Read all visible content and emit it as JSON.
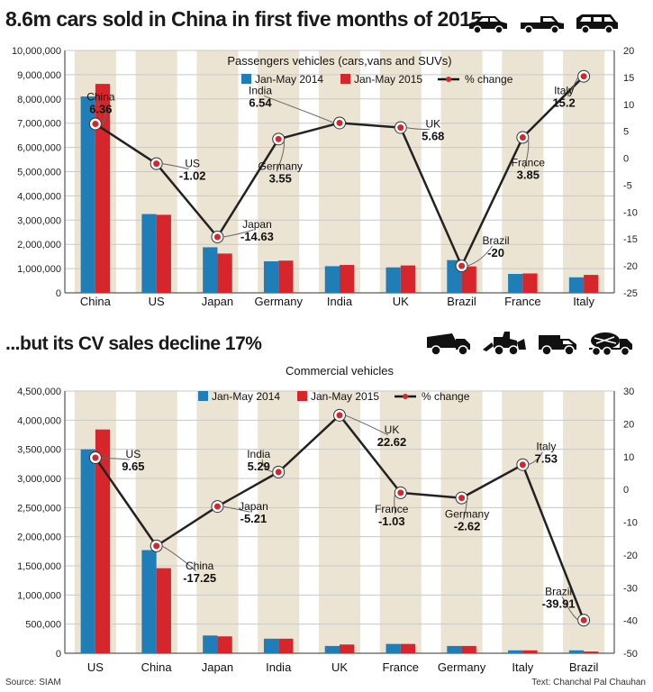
{
  "headline_top": "8.6m cars sold in China in first five months of 2015...",
  "headline_bottom": "...but its CV sales decline 17%",
  "source": "Source: SIAM",
  "credit": "Text: Chanchal Pal Chauhan",
  "colors": {
    "series2014": "#1f7eb8",
    "series2015": "#d7262b",
    "line": "#1a1a1a",
    "band": "#ece4d2",
    "grid": "#c8c8c8"
  },
  "icons_top": [
    "car-icon",
    "pickup-icon",
    "suv-icon"
  ],
  "icons_bottom": [
    "truck-icon",
    "loader-icon",
    "bus-truck-icon",
    "mixer-icon"
  ],
  "chart_data": [
    {
      "type": "bar",
      "title": "Passengers vehicles (cars,vans and SUVs)",
      "categories": [
        "China",
        "US",
        "Japan",
        "Germany",
        "India",
        "UK",
        "Brazil",
        "France",
        "Italy"
      ],
      "series": [
        {
          "name": "Jan-May 2014",
          "values": [
            8100000,
            3250000,
            1880000,
            1300000,
            1100000,
            1050000,
            1350000,
            780000,
            640000
          ]
        },
        {
          "name": "Jan-May 2015",
          "values": [
            8620000,
            3220000,
            1620000,
            1330000,
            1150000,
            1130000,
            1090000,
            800000,
            740000
          ]
        }
      ],
      "line_series": {
        "name": "% change",
        "values": [
          6.36,
          -1.02,
          -14.63,
          3.55,
          6.54,
          5.68,
          -20,
          3.85,
          15.2
        ]
      },
      "annotations": [
        {
          "name": "China",
          "value": "6.36"
        },
        {
          "name": "US",
          "value": "-1.02"
        },
        {
          "name": "Japan",
          "value": "-14.63"
        },
        {
          "name": "Germany",
          "value": "3.55"
        },
        {
          "name": "India",
          "value": "6.54"
        },
        {
          "name": "UK",
          "value": "5.68"
        },
        {
          "name": "Brazil",
          "value": "-20"
        },
        {
          "name": "France",
          "value": "3.85"
        },
        {
          "name": "Italy",
          "value": "15.2"
        }
      ],
      "ylim": [
        0,
        10000000
      ],
      "yticks": [
        "0",
        "1,000,000",
        "2,000,000",
        "3,000,000",
        "4,000,000",
        "5,000,000",
        "6,000,000",
        "7,000,000",
        "8,000,000",
        "9,000,000",
        "10,000,000"
      ],
      "y2lim": [
        -25,
        20
      ],
      "y2ticks": [
        "-25",
        "-20",
        "-15",
        "-10",
        "-5",
        "0",
        "5",
        "10",
        "15",
        "20"
      ]
    },
    {
      "type": "bar",
      "title": "Commercial vehicles",
      "categories": [
        "US",
        "China",
        "Japan",
        "India",
        "UK",
        "France",
        "Germany",
        "Italy",
        "Brazil"
      ],
      "series": [
        {
          "name": "Jan-May 2014",
          "values": [
            3500000,
            1770000,
            305000,
            250000,
            125000,
            160000,
            125000,
            50000,
            50000
          ]
        },
        {
          "name": "Jan-May 2015",
          "values": [
            3840000,
            1460000,
            290000,
            250000,
            150000,
            160000,
            125000,
            50000,
            30000
          ]
        }
      ],
      "line_series": {
        "name": "% change",
        "values": [
          9.65,
          -17.25,
          -5.21,
          5.29,
          22.62,
          -1.03,
          -2.62,
          7.53,
          -39.91
        ]
      },
      "annotations": [
        {
          "name": "US",
          "value": "9.65"
        },
        {
          "name": "China",
          "value": "-17.25"
        },
        {
          "name": "Japan",
          "value": "-5.21"
        },
        {
          "name": "India",
          "value": "5.29"
        },
        {
          "name": "UK",
          "value": "22.62"
        },
        {
          "name": "France",
          "value": "-1.03"
        },
        {
          "name": "Germany",
          "value": "-2.62"
        },
        {
          "name": "Italy",
          "value": "7.53"
        },
        {
          "name": "Brazil",
          "value": "-39.91"
        }
      ],
      "ylim": [
        0,
        4500000
      ],
      "yticks": [
        "0",
        "500,000",
        "1,000,000",
        "1,500,000",
        "2,000,000",
        "2,500,000",
        "3,000,000",
        "3,500,000",
        "4,000,000",
        "4,500,000"
      ],
      "y2lim": [
        -50,
        30
      ],
      "y2ticks": [
        "-50",
        "-40",
        "-30",
        "-20",
        "-10",
        "0",
        "10",
        "20",
        "30"
      ]
    }
  ]
}
